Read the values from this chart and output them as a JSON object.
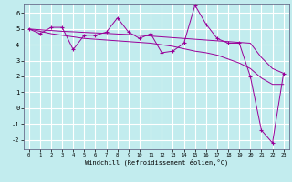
{
  "xlabel": "Windchill (Refroidissement éolien,°C)",
  "bg_color": "#c2ecee",
  "grid_color": "#ffffff",
  "line_color": "#990099",
  "xlim": [
    -0.5,
    23.5
  ],
  "ylim": [
    -2.6,
    6.6
  ],
  "yticks": [
    -2,
    -1,
    0,
    1,
    2,
    3,
    4,
    5,
    6
  ],
  "xticks": [
    0,
    1,
    2,
    3,
    4,
    5,
    6,
    7,
    8,
    9,
    10,
    11,
    12,
    13,
    14,
    15,
    16,
    17,
    18,
    19,
    20,
    21,
    22,
    23
  ],
  "x": [
    0,
    1,
    2,
    3,
    4,
    5,
    6,
    7,
    8,
    9,
    10,
    11,
    12,
    13,
    14,
    15,
    16,
    17,
    18,
    19,
    20,
    21,
    22,
    23
  ],
  "y_main": [
    5.0,
    4.7,
    5.1,
    5.1,
    3.7,
    4.6,
    4.6,
    4.8,
    5.7,
    4.8,
    4.4,
    4.7,
    3.5,
    3.6,
    4.1,
    6.5,
    5.3,
    4.4,
    4.1,
    4.1,
    2.0,
    -1.4,
    -2.2,
    2.2
  ],
  "y_trend1": [
    5.0,
    4.95,
    4.9,
    4.85,
    4.82,
    4.78,
    4.75,
    4.72,
    4.68,
    4.65,
    4.6,
    4.55,
    4.5,
    4.45,
    4.4,
    4.35,
    4.3,
    4.25,
    4.2,
    4.15,
    4.1,
    3.2,
    2.5,
    2.2
  ],
  "y_trend2": [
    5.0,
    4.85,
    4.7,
    4.6,
    4.5,
    4.4,
    4.35,
    4.3,
    4.25,
    4.2,
    4.15,
    4.1,
    4.0,
    3.9,
    3.75,
    3.6,
    3.5,
    3.35,
    3.1,
    2.85,
    2.5,
    1.9,
    1.5,
    1.5
  ]
}
